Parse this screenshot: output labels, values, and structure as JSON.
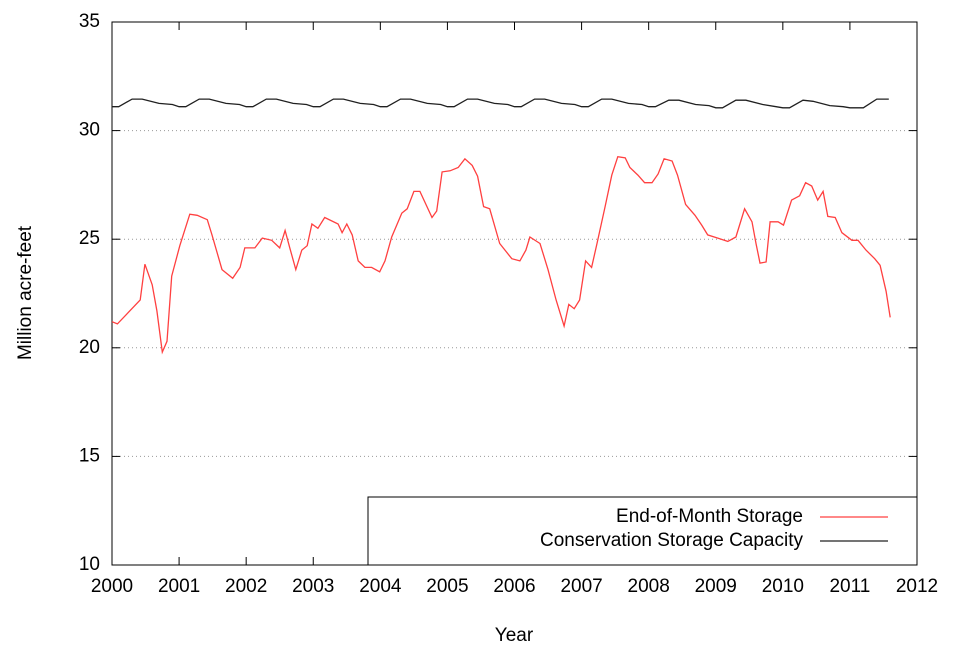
{
  "chart_data": {
    "type": "line",
    "xlabel": "Year",
    "ylabel": "Million acre-feet",
    "xlim": [
      2000,
      2012
    ],
    "xticks": [
      2000,
      2001,
      2002,
      2003,
      2004,
      2005,
      2006,
      2007,
      2008,
      2009,
      2010,
      2011,
      2012
    ],
    "ylim": [
      10,
      35
    ],
    "yticks": [
      10,
      15,
      20,
      25,
      30,
      35
    ],
    "grid": true,
    "legend": "lower-right",
    "series": [
      {
        "name": "End-of-Month Storage",
        "color": "#ff4040",
        "x": [
          2000.0,
          2000.08,
          2000.42,
          2000.49,
          2000.6,
          2000.67,
          2000.75,
          2000.82,
          2000.89,
          2001.01,
          2001.16,
          2001.27,
          2001.42,
          2001.49,
          2001.64,
          2001.8,
          2001.91,
          2001.98,
          2002.13,
          2002.24,
          2002.38,
          2002.5,
          2002.58,
          2002.65,
          2002.74,
          2002.83,
          2002.91,
          2002.98,
          2003.07,
          2003.17,
          2003.37,
          2003.43,
          2003.5,
          2003.58,
          2003.67,
          2003.77,
          2003.87,
          2003.99,
          2004.07,
          2004.17,
          2004.32,
          2004.4,
          2004.5,
          2004.59,
          2004.77,
          2004.84,
          2004.92,
          2005.04,
          2005.16,
          2005.26,
          2005.37,
          2005.45,
          2005.54,
          2005.63,
          2005.78,
          2005.96,
          2006.08,
          2006.17,
          2006.23,
          2006.38,
          2006.5,
          2006.62,
          2006.74,
          2006.81,
          2006.89,
          2006.97,
          2007.06,
          2007.15,
          2007.23,
          2007.35,
          2007.45,
          2007.54,
          2007.65,
          2007.72,
          2007.84,
          2007.94,
          2008.05,
          2008.14,
          2008.23,
          2008.35,
          2008.43,
          2008.55,
          2008.69,
          2008.79,
          2008.88,
          2009.03,
          2009.18,
          2009.3,
          2009.43,
          2009.54,
          2009.6,
          2009.66,
          2009.75,
          2009.81,
          2009.93,
          2010.01,
          2010.13,
          2010.25,
          2010.34,
          2010.43,
          2010.52,
          2010.6,
          2010.67,
          2010.78,
          2010.88,
          2011.03,
          2011.12,
          2011.24,
          2011.37,
          2011.45,
          2011.54,
          2011.6
        ],
        "values": [
          21.2,
          21.1,
          22.2,
          23.85,
          22.9,
          21.7,
          19.8,
          20.3,
          23.3,
          24.7,
          26.15,
          26.1,
          25.9,
          25.2,
          23.6,
          23.2,
          23.7,
          24.6,
          24.6,
          25.05,
          24.95,
          24.6,
          25.4,
          24.6,
          23.6,
          24.5,
          24.7,
          25.7,
          25.5,
          26.0,
          25.7,
          25.3,
          25.7,
          25.2,
          24.0,
          23.7,
          23.7,
          23.5,
          24.0,
          25.1,
          26.2,
          26.4,
          27.2,
          27.2,
          26.0,
          26.3,
          28.1,
          28.15,
          28.3,
          28.7,
          28.4,
          27.9,
          26.5,
          26.4,
          24.8,
          24.1,
          24.0,
          24.5,
          25.1,
          24.8,
          23.6,
          22.2,
          21.0,
          22.0,
          21.8,
          22.2,
          24.0,
          23.7,
          24.8,
          26.5,
          27.95,
          28.8,
          28.75,
          28.3,
          27.95,
          27.6,
          27.6,
          28.0,
          28.7,
          28.6,
          27.95,
          26.6,
          26.1,
          25.65,
          25.2,
          25.05,
          24.9,
          25.1,
          26.4,
          25.8,
          24.8,
          23.9,
          23.95,
          25.8,
          25.8,
          25.65,
          26.8,
          27.0,
          27.6,
          27.45,
          26.8,
          27.2,
          26.05,
          26.0,
          25.3,
          24.95,
          24.95,
          24.5,
          24.1,
          23.8,
          22.6,
          21.4
        ]
      },
      {
        "name": "Conservation Storage Capacity",
        "color": "#202020",
        "x": [
          2000.0,
          2000.1,
          2000.3,
          2000.45,
          2000.7,
          2000.9,
          2001.0,
          2001.1,
          2001.3,
          2001.45,
          2001.7,
          2001.9,
          2002.0,
          2002.1,
          2002.3,
          2002.45,
          2002.7,
          2002.9,
          2003.0,
          2003.1,
          2003.3,
          2003.45,
          2003.7,
          2003.9,
          2004.0,
          2004.1,
          2004.3,
          2004.45,
          2004.7,
          2004.9,
          2005.0,
          2005.1,
          2005.3,
          2005.45,
          2005.7,
          2005.9,
          2006.0,
          2006.1,
          2006.3,
          2006.45,
          2006.7,
          2006.9,
          2007.0,
          2007.1,
          2007.3,
          2007.45,
          2007.7,
          2007.9,
          2008.0,
          2008.1,
          2008.3,
          2008.45,
          2008.7,
          2008.9,
          2009.0,
          2009.1,
          2009.3,
          2009.45,
          2009.7,
          2009.9,
          2010.0,
          2010.1,
          2010.3,
          2010.45,
          2010.7,
          2010.9,
          2011.0,
          2011.2,
          2011.4,
          2011.58
        ],
        "values": [
          31.1,
          31.1,
          31.45,
          31.45,
          31.25,
          31.2,
          31.1,
          31.1,
          31.45,
          31.45,
          31.25,
          31.2,
          31.1,
          31.1,
          31.45,
          31.45,
          31.25,
          31.2,
          31.1,
          31.1,
          31.45,
          31.45,
          31.25,
          31.2,
          31.1,
          31.1,
          31.45,
          31.45,
          31.25,
          31.2,
          31.1,
          31.1,
          31.45,
          31.45,
          31.25,
          31.2,
          31.1,
          31.1,
          31.45,
          31.45,
          31.25,
          31.2,
          31.1,
          31.1,
          31.45,
          31.45,
          31.25,
          31.2,
          31.1,
          31.1,
          31.4,
          31.4,
          31.2,
          31.15,
          31.05,
          31.05,
          31.4,
          31.4,
          31.2,
          31.1,
          31.05,
          31.05,
          31.4,
          31.35,
          31.15,
          31.1,
          31.05,
          31.05,
          31.45,
          31.45
        ]
      }
    ]
  }
}
